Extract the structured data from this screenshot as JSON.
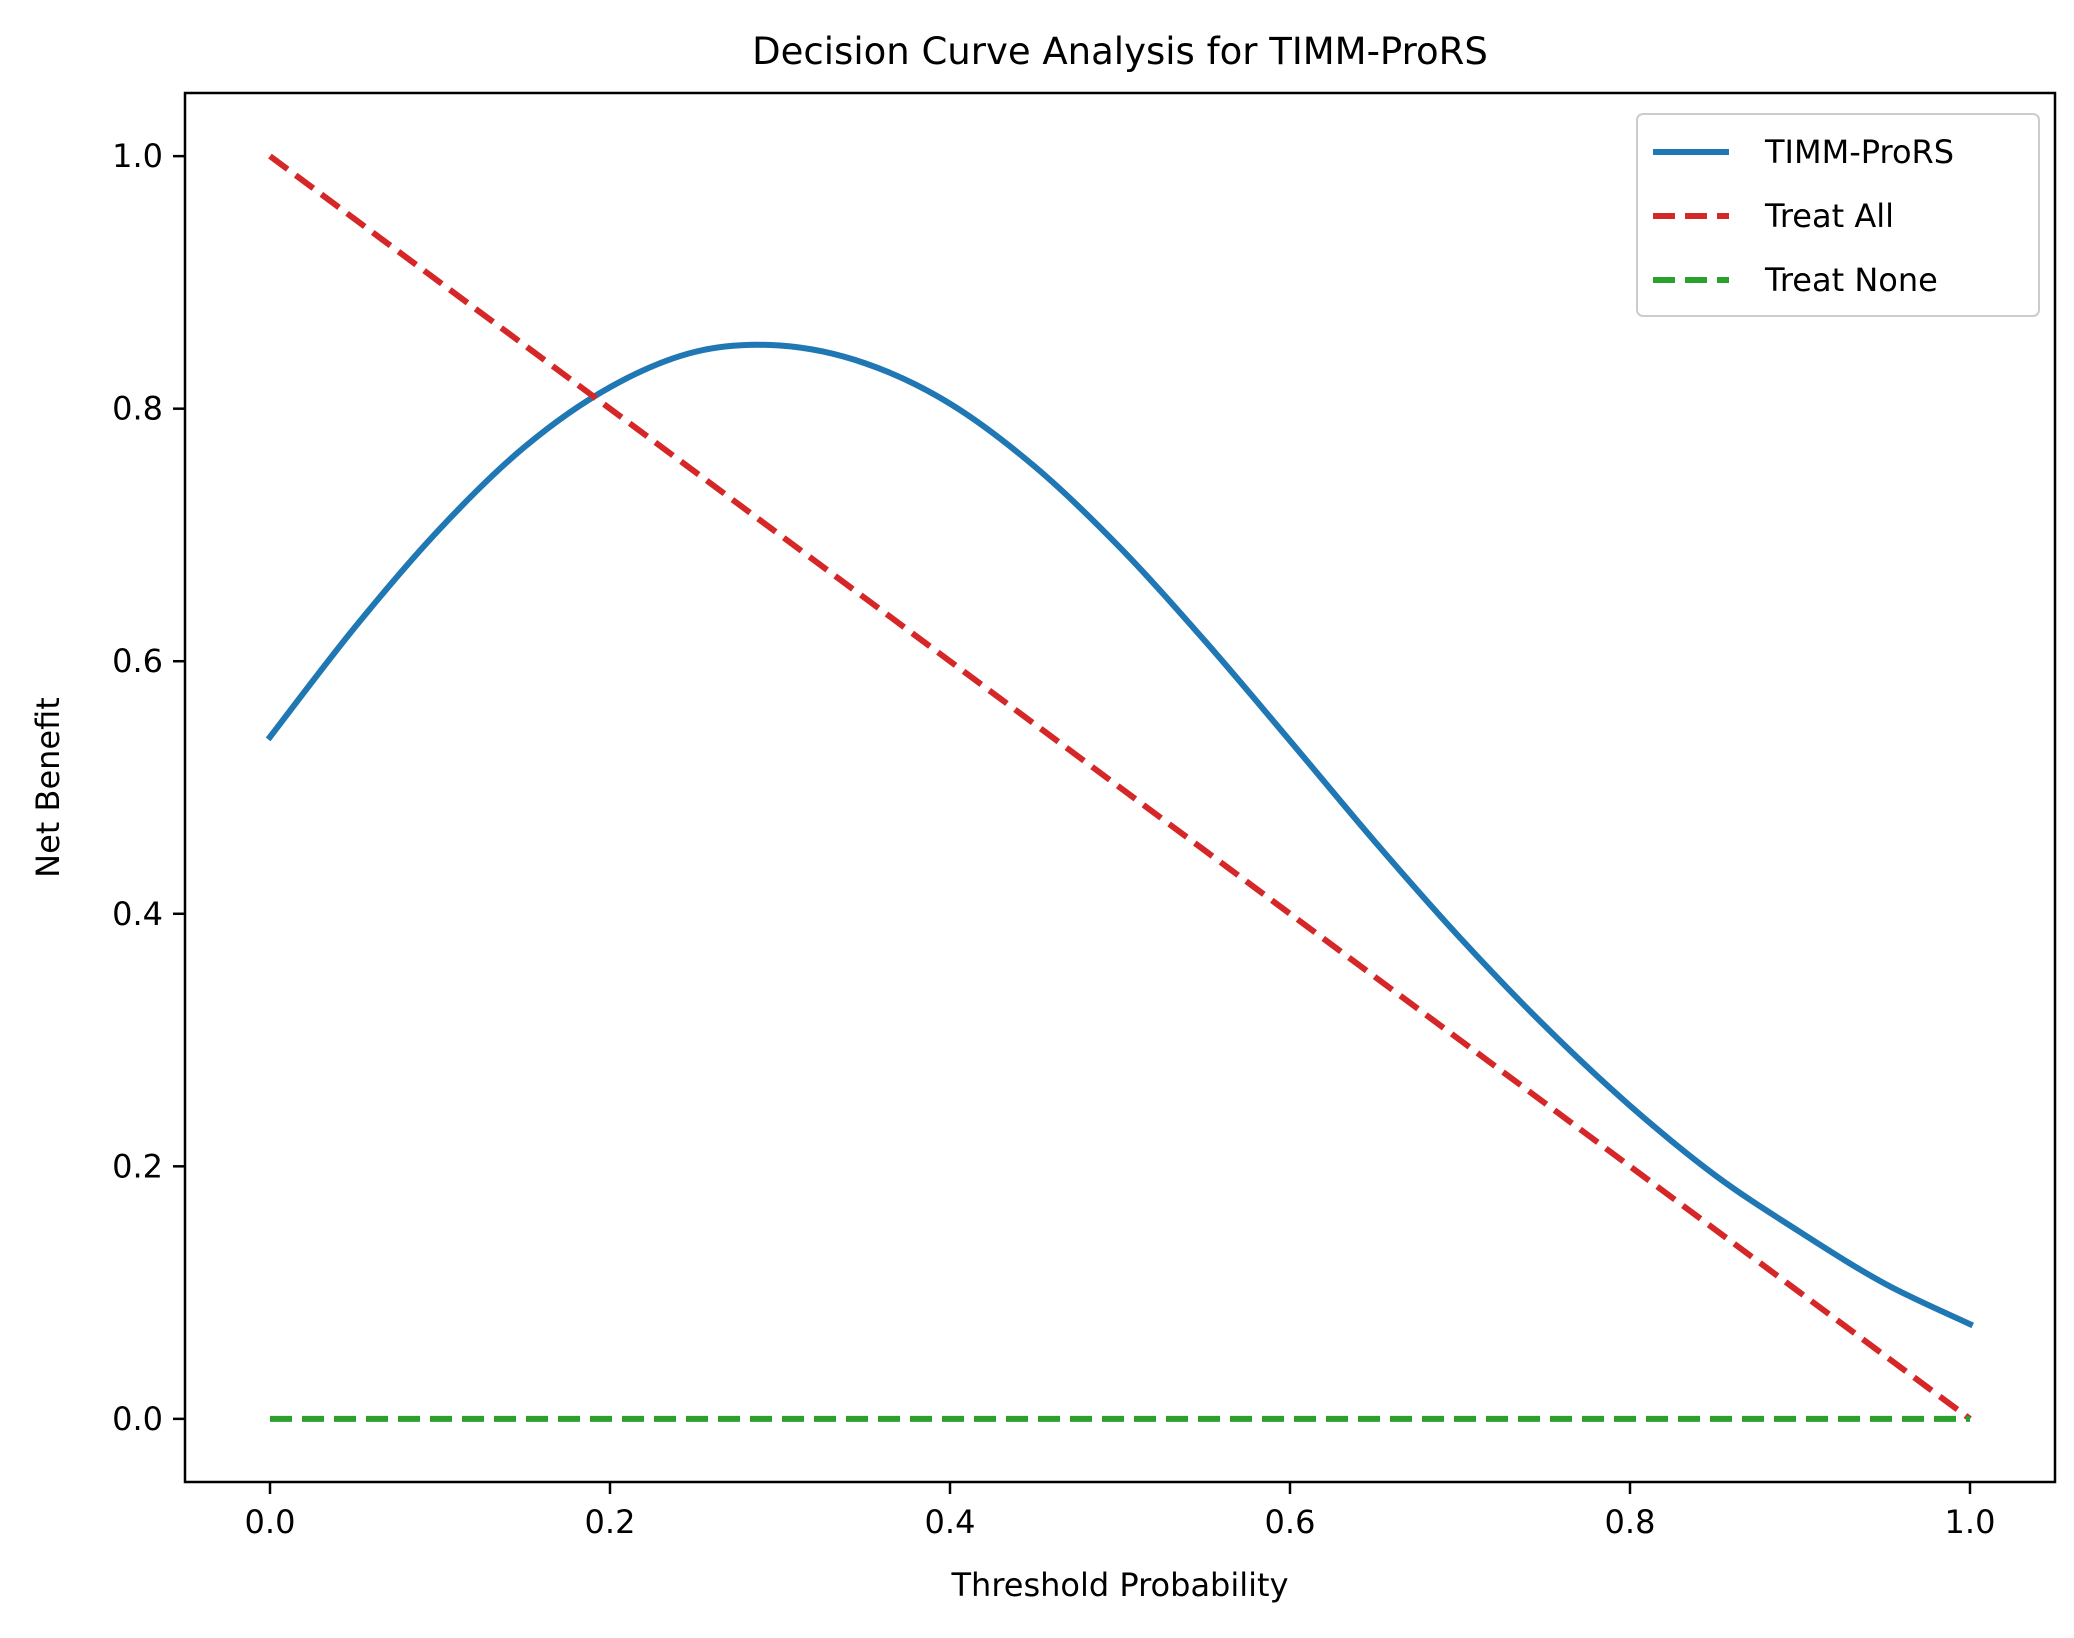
{
  "chart_data": {
    "type": "line",
    "title": "Decision Curve Analysis for TIMM-ProRS",
    "xlabel": "Threshold Probability",
    "ylabel": "Net Benefit",
    "xlim": [
      -0.05,
      1.05
    ],
    "ylim": [
      -0.05,
      1.05
    ],
    "xticks": [
      0.0,
      0.2,
      0.4,
      0.6,
      0.8,
      1.0
    ],
    "xtick_labels": [
      "0.0",
      "0.2",
      "0.4",
      "0.6",
      "0.8",
      "1.0"
    ],
    "yticks": [
      0.0,
      0.2,
      0.4,
      0.6,
      0.8,
      1.0
    ],
    "ytick_labels": [
      "0.0",
      "0.2",
      "0.4",
      "0.6",
      "0.8",
      "1.0"
    ],
    "grid": false,
    "legend_position": "top-right",
    "series": [
      {
        "name": "TIMM-ProRS",
        "color": "#1f77b4",
        "style": "solid",
        "x": [
          0.0,
          0.05,
          0.1,
          0.15,
          0.2,
          0.25,
          0.3,
          0.35,
          0.4,
          0.45,
          0.5,
          0.55,
          0.6,
          0.65,
          0.7,
          0.75,
          0.8,
          0.85,
          0.9,
          0.95,
          1.0
        ],
        "y": [
          0.54,
          0.627,
          0.705,
          0.77,
          0.817,
          0.845,
          0.85,
          0.836,
          0.804,
          0.754,
          0.69,
          0.616,
          0.537,
          0.457,
          0.381,
          0.311,
          0.248,
          0.193,
          0.148,
          0.107,
          0.075
        ]
      },
      {
        "name": "Treat All",
        "color": "#d62728",
        "style": "dashed",
        "x": [
          0.0,
          1.0
        ],
        "y": [
          1.0,
          0.0
        ]
      },
      {
        "name": "Treat None",
        "color": "#2ca02c",
        "style": "dashed",
        "x": [
          0.0,
          1.0
        ],
        "y": [
          0.0,
          0.0
        ]
      }
    ]
  }
}
